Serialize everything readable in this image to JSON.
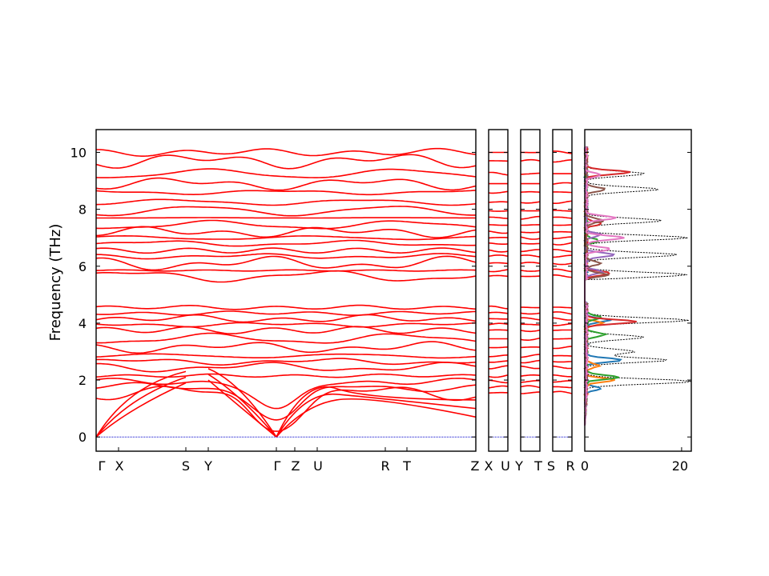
{
  "chart_data": {
    "type": "line",
    "title": "",
    "ylabel": "Frequency (THz)",
    "ylim": [
      -0.5,
      10.8
    ],
    "yticks": [
      0,
      2,
      4,
      6,
      8,
      10
    ],
    "grid": false,
    "legend": "none",
    "band_color": "#ff0000",
    "zero_line_color": "#0000cc",
    "k_points": {
      "segment_1": [
        "Γ",
        "X",
        "S",
        "Y",
        "Γ",
        "Z",
        "U",
        "R",
        "T",
        "Z"
      ],
      "segment_2": [
        "X",
        "U"
      ],
      "segment_3": [
        "Y",
        "T"
      ],
      "segment_4": [
        "S",
        "R"
      ]
    },
    "band_levels": [
      1.55,
      1.75,
      1.95,
      2.15,
      2.45,
      2.65,
      2.85,
      3.15,
      3.45,
      3.75,
      3.95,
      4.15,
      4.35,
      4.55,
      5.65,
      5.85,
      6.1,
      6.35,
      6.55,
      6.8,
      7.0,
      7.2,
      7.45,
      7.7,
      7.95,
      8.25,
      8.6,
      8.9,
      9.25,
      9.7,
      10.0
    ],
    "acoustic_gamma_endpoints": [
      0.7,
      1.0,
      1.3
    ],
    "dos": {
      "xticks": [
        0,
        20
      ],
      "xlim": [
        0,
        22
      ],
      "total_color": "#000000",
      "series": [
        {
          "color": "#1f77b4",
          "peaks": [
            [
              2.7,
              7.5
            ],
            [
              4.1,
              4.5
            ],
            [
              1.7,
              3.0
            ]
          ]
        },
        {
          "color": "#ff7f0e",
          "peaks": [
            [
              2.0,
              6.0
            ],
            [
              4.0,
              3.5
            ],
            [
              2.5,
              2.5
            ]
          ]
        },
        {
          "color": "#2ca02c",
          "peaks": [
            [
              2.1,
              7.0
            ],
            [
              3.6,
              4.0
            ],
            [
              4.2,
              3.0
            ],
            [
              6.9,
              2.5
            ]
          ]
        },
        {
          "color": "#d62728",
          "peaks": [
            [
              4.05,
              10.5
            ],
            [
              9.3,
              9.0
            ],
            [
              5.75,
              5.0
            ],
            [
              7.5,
              3.0
            ]
          ]
        },
        {
          "color": "#9467bd",
          "peaks": [
            [
              6.4,
              6.0
            ],
            [
              5.8,
              3.5
            ],
            [
              7.1,
              3.0
            ]
          ]
        },
        {
          "color": "#8c564b",
          "peaks": [
            [
              8.7,
              4.0
            ],
            [
              6.1,
              3.0
            ],
            [
              7.6,
              3.5
            ],
            [
              5.7,
              4.5
            ]
          ]
        },
        {
          "color": "#e377c2",
          "peaks": [
            [
              7.0,
              8.0
            ],
            [
              7.7,
              6.0
            ],
            [
              9.2,
              3.0
            ],
            [
              6.6,
              5.0
            ]
          ]
        }
      ],
      "total_peaks": [
        [
          1.95,
          22.0
        ],
        [
          2.7,
          17.0
        ],
        [
          4.1,
          21.0
        ],
        [
          3.5,
          12.0
        ],
        [
          5.7,
          21.0
        ],
        [
          6.4,
          19.0
        ],
        [
          7.0,
          21.0
        ],
        [
          8.7,
          15.0
        ],
        [
          9.25,
          12.0
        ],
        [
          7.6,
          16.0
        ],
        [
          3.0,
          10.0
        ]
      ]
    }
  }
}
